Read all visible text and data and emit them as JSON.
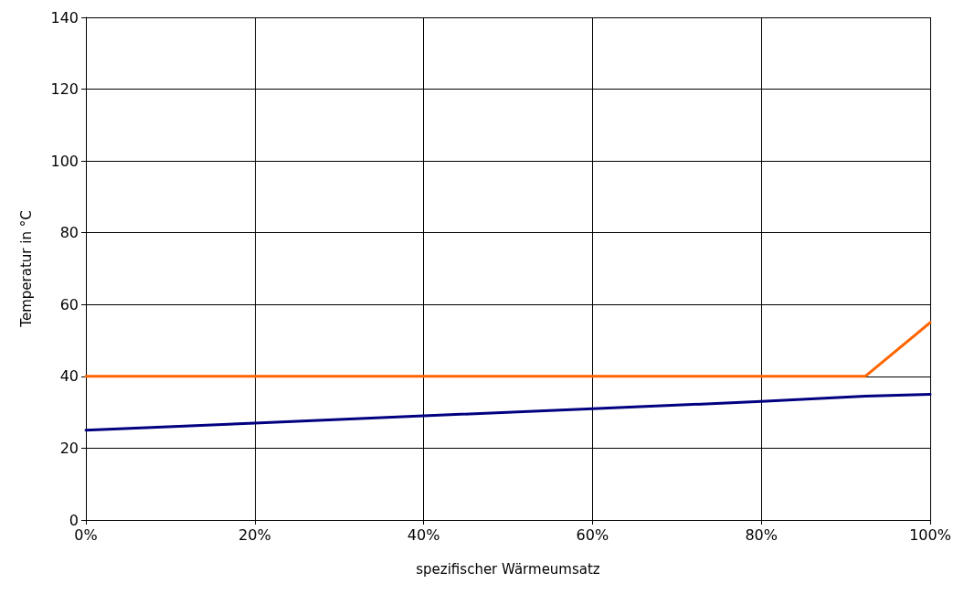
{
  "chart_data": {
    "type": "line",
    "xlabel": "spezifischer Wärmeumsatz",
    "ylabel": "Temperatur in °C",
    "series": [
      {
        "color": "#ff6600",
        "x": [
          0,
          20,
          40,
          60,
          80,
          92.3,
          100
        ],
        "values": [
          40,
          40,
          40,
          40,
          40,
          40,
          55
        ]
      },
      {
        "color": "#000080",
        "x": [
          0,
          20,
          40,
          60,
          80,
          92.3,
          100
        ],
        "values": [
          25,
          27,
          29,
          31,
          33,
          34.5,
          35
        ]
      }
    ],
    "xlim": [
      0,
      100
    ],
    "xticks": [
      {
        "value": 0,
        "label": "0%"
      },
      {
        "value": 20,
        "label": "20%"
      },
      {
        "value": 40,
        "label": "40%"
      },
      {
        "value": 60,
        "label": "60%"
      },
      {
        "value": 80,
        "label": "80%"
      },
      {
        "value": 100,
        "label": "100%"
      }
    ],
    "ylim": [
      0,
      140
    ],
    "yticks": [
      0,
      20,
      40,
      60,
      80,
      100,
      120,
      140
    ],
    "grid": true,
    "marker": "none",
    "line_style": "solid"
  }
}
